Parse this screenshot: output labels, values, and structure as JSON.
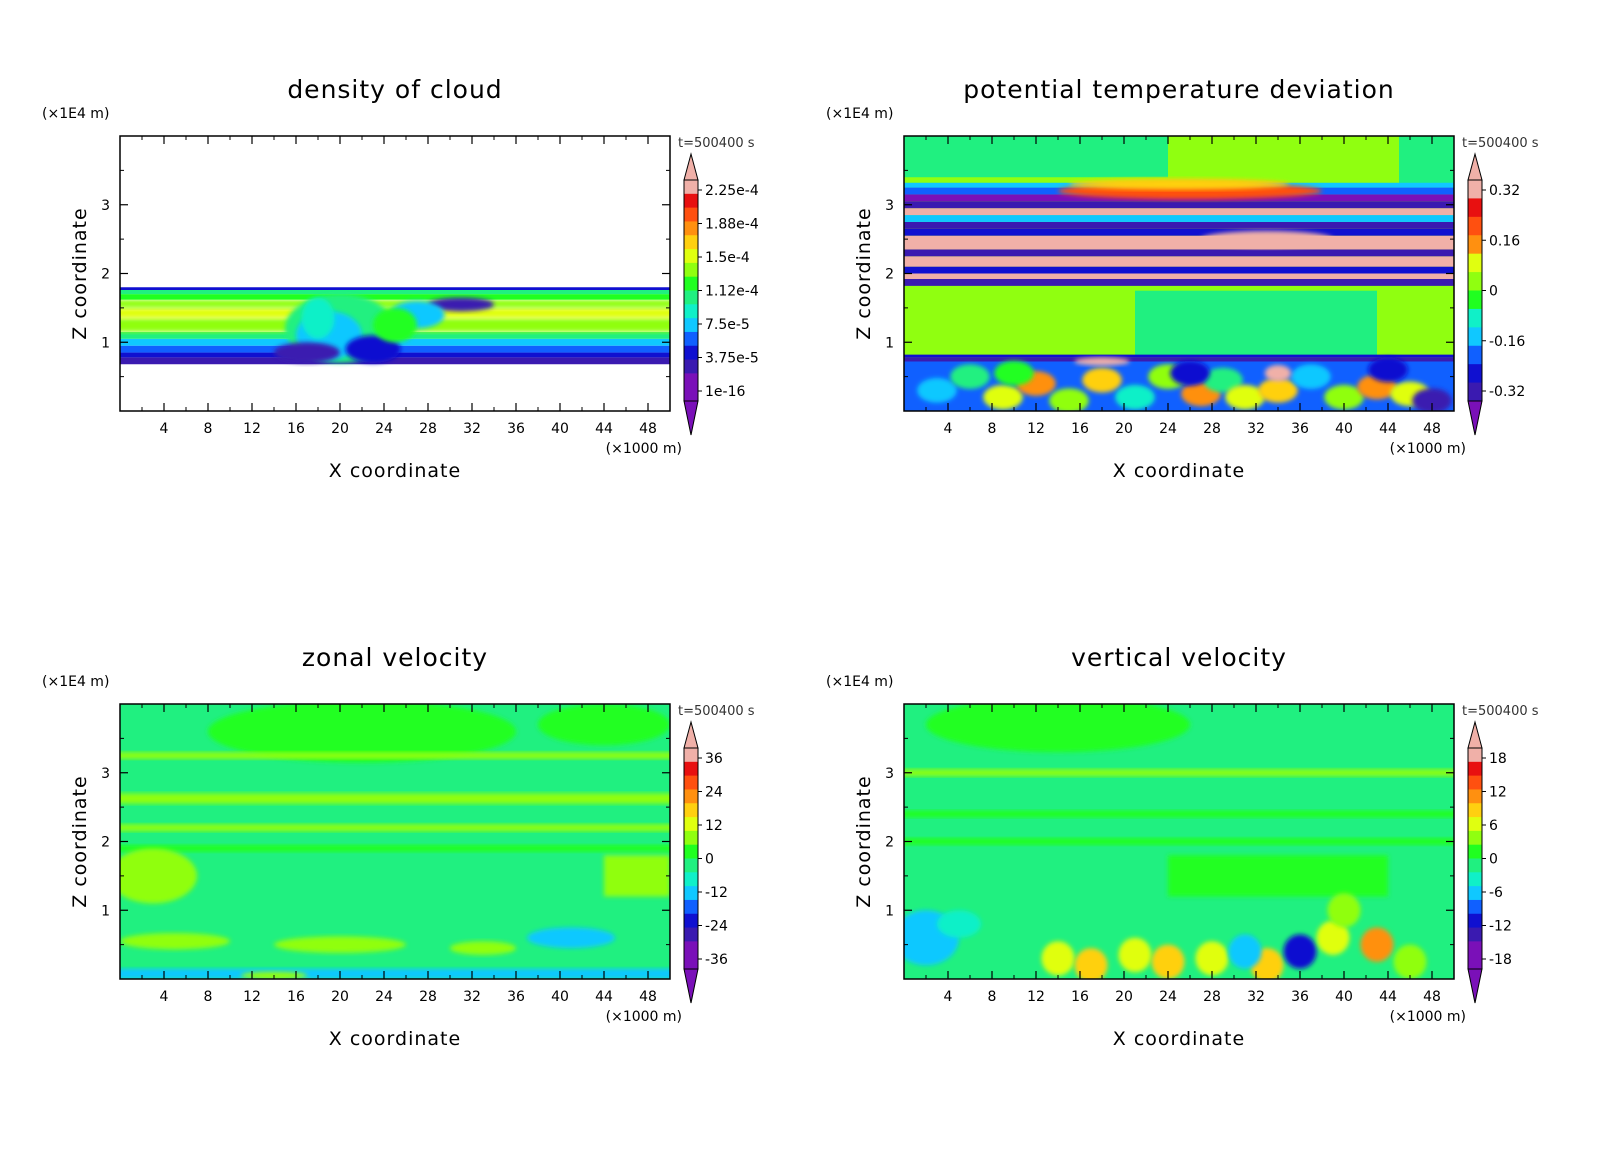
{
  "chart_data": [
    {
      "type": "heatmap",
      "title": "density of cloud",
      "xlabel": "X coordinate",
      "ylabel": "Z coordinate",
      "x_unit_label": "(×1000 m)",
      "y_unit_label": "(×1E4 m)",
      "time_label": "t=500400 s",
      "xlim": [
        0,
        50
      ],
      "ylim": [
        0,
        4
      ],
      "x_ticks": [
        "4",
        "8",
        "12",
        "16",
        "20",
        "24",
        "28",
        "32",
        "36",
        "40",
        "44",
        "48"
      ],
      "y_ticks": [
        "1",
        "2",
        "3"
      ],
      "colorbar_labels": [
        "2.25e-4",
        "1.88e-4",
        "1.5e-4",
        "1.12e-4",
        "7.5e-5",
        "3.75e-5",
        "1e-16"
      ],
      "field": "cloud"
    },
    {
      "type": "heatmap",
      "title": "potential temperature deviation",
      "xlabel": "X coordinate",
      "ylabel": "Z coordinate",
      "x_unit_label": "(×1000 m)",
      "y_unit_label": "(×1E4 m)",
      "time_label": "t=500400 s",
      "xlim": [
        0,
        50
      ],
      "ylim": [
        0,
        4
      ],
      "x_ticks": [
        "4",
        "8",
        "12",
        "16",
        "20",
        "24",
        "28",
        "32",
        "36",
        "40",
        "44",
        "48"
      ],
      "y_ticks": [
        "1",
        "2",
        "3"
      ],
      "colorbar_labels": [
        "0.32",
        "0.16",
        "0",
        "-0.16",
        "-0.32"
      ],
      "field": "theta"
    },
    {
      "type": "heatmap",
      "title": "zonal velocity",
      "xlabel": "X coordinate",
      "ylabel": "Z coordinate",
      "x_unit_label": "(×1000 m)",
      "y_unit_label": "(×1E4 m)",
      "time_label": "t=500400 s",
      "xlim": [
        0,
        50
      ],
      "ylim": [
        0,
        4
      ],
      "x_ticks": [
        "4",
        "8",
        "12",
        "16",
        "20",
        "24",
        "28",
        "32",
        "36",
        "40",
        "44",
        "48"
      ],
      "y_ticks": [
        "1",
        "2",
        "3"
      ],
      "colorbar_labels": [
        "36",
        "24",
        "12",
        "0",
        "-12",
        "-24",
        "-36"
      ],
      "field": "u"
    },
    {
      "type": "heatmap",
      "title": "vertical velocity",
      "xlabel": "X coordinate",
      "ylabel": "Z coordinate",
      "x_unit_label": "(×1000 m)",
      "y_unit_label": "(×1E4 m)",
      "time_label": "t=500400 s",
      "xlim": [
        0,
        50
      ],
      "ylim": [
        0,
        4
      ],
      "x_ticks": [
        "4",
        "8",
        "12",
        "16",
        "20",
        "24",
        "28",
        "32",
        "36",
        "40",
        "44",
        "48"
      ],
      "y_ticks": [
        "1",
        "2",
        "3"
      ],
      "colorbar_labels": [
        "18",
        "12",
        "6",
        "0",
        "-6",
        "-12",
        "-18"
      ],
      "field": "w"
    }
  ],
  "colors": {
    "palette": [
      "#7a10b8",
      "#3a1ab0",
      "#1010d0",
      "#1060ff",
      "#10c8ff",
      "#10f0c8",
      "#20f080",
      "#20ff20",
      "#90ff10",
      "#e0ff10",
      "#ffd010",
      "#ff9010",
      "#ff5010",
      "#e81010",
      "#f0b0a8"
    ],
    "axis": "#000000",
    "background": "#ffffff"
  }
}
